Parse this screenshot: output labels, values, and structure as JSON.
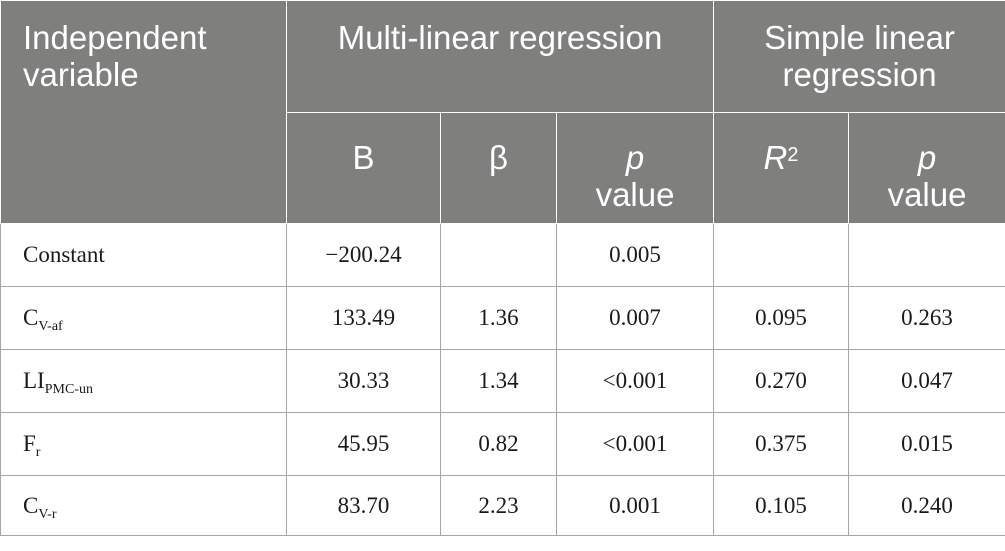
{
  "header": {
    "independent_variable": "Independent variable",
    "multi_linear_regression": "Multi-linear regression",
    "simple_linear_regression": "Simple linear regression",
    "col_b": "B",
    "col_beta": "β",
    "col_p": "p",
    "col_value": "value",
    "col_r": "R",
    "col_r_sup": "2"
  },
  "rows": [
    {
      "var": "Constant",
      "var_sub": "",
      "b": "−200.24",
      "beta": "",
      "p": "0.005",
      "r2": "",
      "sp": ""
    },
    {
      "var": "C",
      "var_sub": "V-af",
      "b": "133.49",
      "beta": "1.36",
      "p": "0.007",
      "r2": "0.095",
      "sp": "0.263"
    },
    {
      "var": "LI",
      "var_sub": "PMC-un",
      "b": "30.33",
      "beta": "1.34",
      "p": "<0.001",
      "r2": "0.270",
      "sp": "0.047"
    },
    {
      "var": "F",
      "var_sub": "r",
      "b": "45.95",
      "beta": "0.82",
      "p": "<0.001",
      "r2": "0.375",
      "sp": "0.015"
    },
    {
      "var": "C",
      "var_sub": "V-r",
      "b": "83.70",
      "beta": "2.23",
      "p": "0.001",
      "r2": "0.105",
      "sp": "0.240"
    }
  ]
}
